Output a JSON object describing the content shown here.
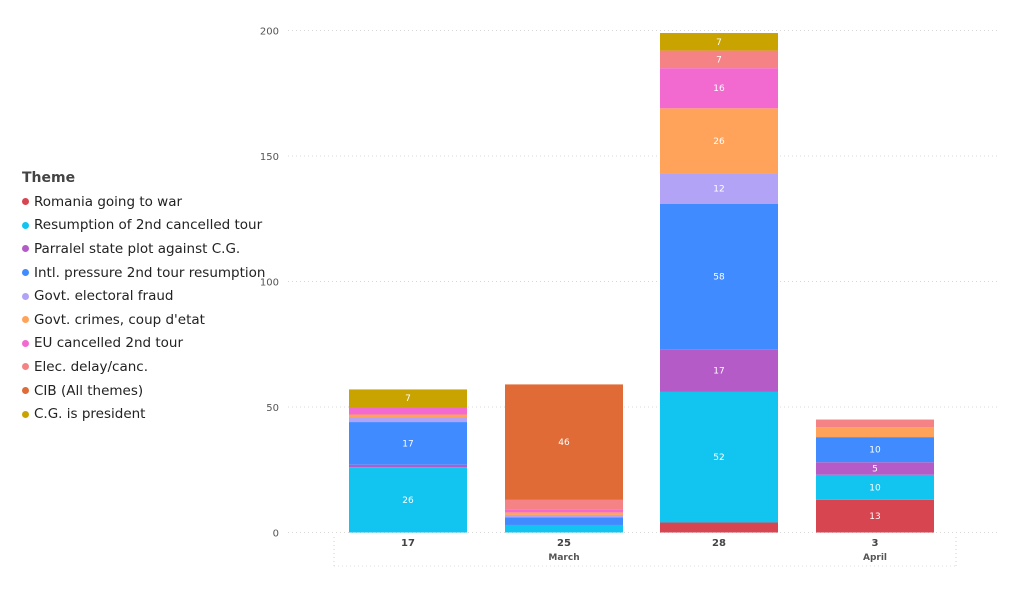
{
  "legend": {
    "title": "Theme",
    "items": [
      {
        "label": "Romania going to war",
        "color": "#D64550"
      },
      {
        "label": "Resumption of 2nd cancelled tour",
        "color": "#12C4F0"
      },
      {
        "label": "Parralel state plot against C.G.",
        "color": "#B55BC8"
      },
      {
        "label": "Intl. pressure 2nd tour resumption",
        "color": "#3F8BFF"
      },
      {
        "label": "Govt. electoral fraud",
        "color": "#B3A3F7"
      },
      {
        "label": "Govt. crimes, coup d'etat",
        "color": "#FFA35A"
      },
      {
        "label": "EU cancelled 2nd tour",
        "color": "#F26ACF"
      },
      {
        "label": "Elec. delay/canc.",
        "color": "#F58385"
      },
      {
        "label": "CIB (All themes)",
        "color": "#E06B36"
      },
      {
        "label": "C.G. is president",
        "color": "#C9A400"
      }
    ]
  },
  "chart_data": {
    "type": "bar",
    "stacked": true,
    "categories": [
      "17",
      "25",
      "28",
      "3"
    ],
    "category_groups": [
      {
        "label": "March",
        "categories": [
          "17",
          "25",
          "28"
        ]
      },
      {
        "label": "April",
        "categories": [
          "3"
        ]
      }
    ],
    "ylim": [
      0,
      200
    ],
    "yticks": [
      0,
      50,
      100,
      150,
      200
    ],
    "grid": true,
    "legend_position": "left",
    "series": [
      {
        "name": "Romania going to war",
        "color": "#D64550",
        "values": [
          0,
          0,
          4,
          13
        ],
        "labels": [
          null,
          null,
          null,
          "13"
        ]
      },
      {
        "name": "Resumption of 2nd cancelled tour",
        "color": "#12C4F0",
        "values": [
          26,
          3,
          52,
          10
        ],
        "labels": [
          "26",
          null,
          "52",
          "10"
        ]
      },
      {
        "name": "Parralel state plot against C.G.",
        "color": "#B55BC8",
        "values": [
          1,
          0,
          17,
          5
        ],
        "labels": [
          null,
          null,
          "17",
          "5"
        ]
      },
      {
        "name": "Intl. pressure 2nd tour resumption",
        "color": "#3F8BFF",
        "values": [
          17,
          3,
          58,
          10
        ],
        "labels": [
          "17",
          null,
          "58",
          "10"
        ]
      },
      {
        "name": "Govt. electoral fraud",
        "color": "#B3A3F7",
        "values": [
          2,
          1,
          12,
          0
        ],
        "labels": [
          null,
          null,
          "12",
          null
        ]
      },
      {
        "name": "Govt. crimes, coup d'etat",
        "color": "#FFA35A",
        "values": [
          1,
          1,
          26,
          4
        ],
        "labels": [
          null,
          null,
          "26",
          null
        ]
      },
      {
        "name": "EU cancelled 2nd tour",
        "color": "#F26ACF",
        "values": [
          3,
          1,
          16,
          0
        ],
        "labels": [
          null,
          null,
          "16",
          null
        ]
      },
      {
        "name": "Elec. delay/canc.",
        "color": "#F58385",
        "values": [
          0,
          4,
          7,
          3
        ],
        "labels": [
          null,
          null,
          "7",
          null
        ]
      },
      {
        "name": "CIB (All themes)",
        "color": "#E06B36",
        "values": [
          0,
          46,
          0,
          0
        ],
        "labels": [
          null,
          "46",
          null,
          null
        ]
      },
      {
        "name": "C.G. is president",
        "color": "#C9A400",
        "values": [
          7,
          0,
          7,
          0
        ],
        "labels": [
          "7",
          null,
          "7",
          null
        ]
      }
    ]
  }
}
